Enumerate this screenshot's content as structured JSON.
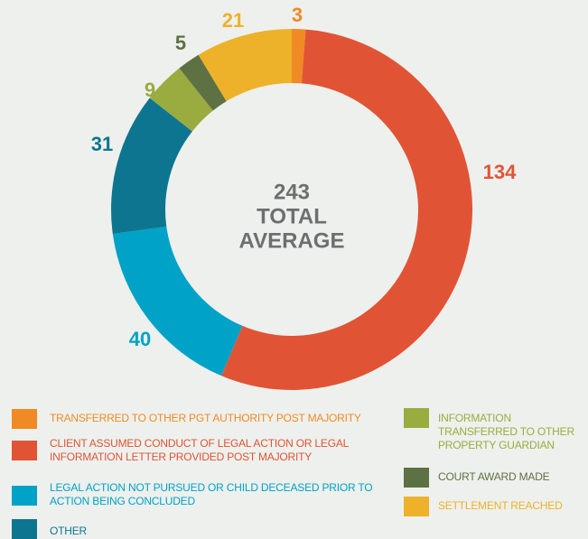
{
  "chart_data": {
    "type": "donut",
    "total": 243,
    "center_text": [
      "TOTAL",
      "AVERAGE"
    ],
    "categories": [
      "TRANSFERRED TO OTHER PGT AUTHORITY POST MAJORITY",
      "CLIENT ASSUMED CONDUCT OF LEGAL ACTION OR LEGAL INFORMATION LETTER PROVIDED POST MAJORITY",
      "LEGAL ACTION NOT PURSUED OR CHILD DECEASED PRIOR TO ACTION BEING CONCLUDED",
      "OTHER",
      "INFORMATION TRANSFERRED TO OTHER PROPERTY GUARDIAN",
      "COURT AWARD MADE",
      "SETTLEMENT REACHED"
    ],
    "values": [
      3,
      134,
      40,
      31,
      9,
      5,
      21
    ],
    "colors": [
      "#f08a24",
      "#e05435",
      "#00a3c7",
      "#0e7590",
      "#9aab3f",
      "#5e7142",
      "#edb12a"
    ]
  }
}
